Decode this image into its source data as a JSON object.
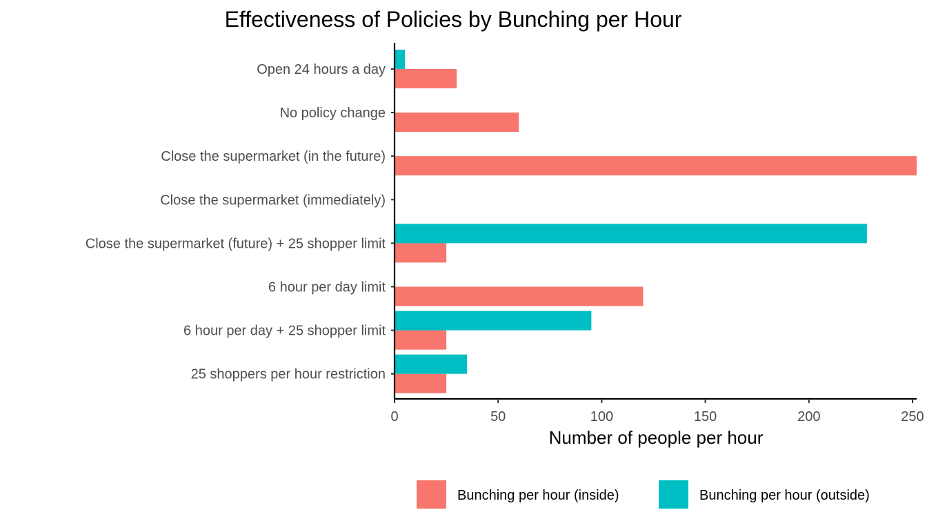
{
  "chart_data": {
    "type": "bar",
    "orientation": "horizontal",
    "title": "Effectiveness of Policies by Bunching per Hour",
    "xlabel": "Number of people per hour",
    "ylabel": "",
    "xlim": [
      0,
      252
    ],
    "x_ticks": [
      0,
      50,
      100,
      150,
      200,
      250
    ],
    "grid": false,
    "legend_position": "bottom",
    "categories": [
      "Open 24 hours a day",
      "No policy change",
      "Close the supermarket (in the future)",
      "Close the supermarket (immediately)",
      "Close the supermarket (future) + 25 shopper limit",
      "6 hour per day limit",
      "6 hour per day + 25 shopper limit",
      "25 shoppers per hour restriction"
    ],
    "series": [
      {
        "name": "Bunching per hour (inside)",
        "color": "#F8766D",
        "values": [
          30,
          60,
          252,
          0,
          25,
          120,
          25,
          25
        ]
      },
      {
        "name": "Bunching per hour (outside)",
        "color": "#00BFC4",
        "values": [
          5,
          0,
          0,
          0,
          228,
          0,
          95,
          35
        ]
      }
    ]
  }
}
